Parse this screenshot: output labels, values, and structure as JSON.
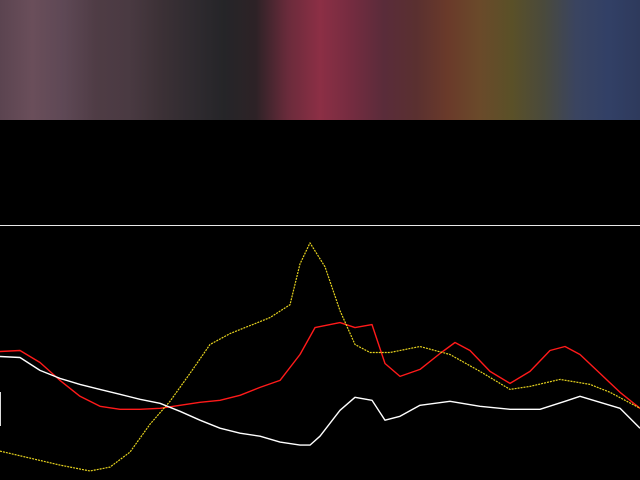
{
  "spectrum_strip": {
    "colors": [
      "#5b4450",
      "#6a4e5a",
      "#5e4855",
      "#4f3c45",
      "#4a3a42",
      "#3c3136",
      "#302b30",
      "#252528",
      "#2d2226",
      "#6a2b3b",
      "#8c2f45",
      "#742c40",
      "#5a2c3a",
      "#5a3030",
      "#6a3a2a",
      "#6a4a2a",
      "#5a5028",
      "#4a4a3c",
      "#3a4460",
      "#324066",
      "#2e3a5c"
    ]
  },
  "chart_data": {
    "type": "line",
    "x_range": [
      0,
      640
    ],
    "y_range": [
      0,
      255
    ],
    "grid": false,
    "series": [
      {
        "color": "#ff1a1a",
        "values": [
          [
            0,
            129
          ],
          [
            20,
            130
          ],
          [
            40,
            118
          ],
          [
            60,
            100
          ],
          [
            80,
            84
          ],
          [
            100,
            74
          ],
          [
            120,
            71
          ],
          [
            140,
            71
          ],
          [
            160,
            72
          ],
          [
            180,
            75
          ],
          [
            200,
            78
          ],
          [
            220,
            80
          ],
          [
            240,
            85
          ],
          [
            260,
            93
          ],
          [
            280,
            100
          ],
          [
            300,
            126
          ],
          [
            315,
            153
          ],
          [
            340,
            158
          ],
          [
            355,
            153
          ],
          [
            372,
            156
          ],
          [
            385,
            117
          ],
          [
            400,
            104
          ],
          [
            420,
            111
          ],
          [
            440,
            127
          ],
          [
            455,
            138
          ],
          [
            470,
            130
          ],
          [
            490,
            109
          ],
          [
            510,
            97
          ],
          [
            530,
            109
          ],
          [
            550,
            130
          ],
          [
            565,
            134
          ],
          [
            580,
            126
          ],
          [
            600,
            107
          ],
          [
            620,
            88
          ],
          [
            640,
            72
          ]
        ]
      },
      {
        "color": "#e6d21e",
        "values": [
          [
            0,
            29
          ],
          [
            30,
            22
          ],
          [
            60,
            15
          ],
          [
            90,
            9
          ],
          [
            110,
            13
          ],
          [
            130,
            28
          ],
          [
            150,
            56
          ],
          [
            170,
            79
          ],
          [
            190,
            107
          ],
          [
            210,
            136
          ],
          [
            230,
            147
          ],
          [
            250,
            155
          ],
          [
            270,
            163
          ],
          [
            290,
            176
          ],
          [
            300,
            217
          ],
          [
            310,
            238
          ],
          [
            325,
            214
          ],
          [
            340,
            170
          ],
          [
            355,
            136
          ],
          [
            370,
            128
          ],
          [
            390,
            128
          ],
          [
            420,
            134
          ],
          [
            450,
            126
          ],
          [
            480,
            109
          ],
          [
            510,
            91
          ],
          [
            530,
            94
          ],
          [
            560,
            101
          ],
          [
            590,
            96
          ],
          [
            610,
            88
          ],
          [
            640,
            72
          ]
        ]
      },
      {
        "color": "#ffffff",
        "values": [
          [
            0,
            124
          ],
          [
            20,
            123
          ],
          [
            40,
            110
          ],
          [
            60,
            102
          ],
          [
            80,
            96
          ],
          [
            100,
            91
          ],
          [
            120,
            86
          ],
          [
            140,
            81
          ],
          [
            160,
            77
          ],
          [
            180,
            69
          ],
          [
            200,
            60
          ],
          [
            220,
            52
          ],
          [
            240,
            47
          ],
          [
            260,
            44
          ],
          [
            280,
            38
          ],
          [
            300,
            35
          ],
          [
            310,
            35
          ],
          [
            320,
            44
          ],
          [
            340,
            70
          ],
          [
            355,
            83
          ],
          [
            372,
            80
          ],
          [
            385,
            60
          ],
          [
            400,
            64
          ],
          [
            420,
            75
          ],
          [
            450,
            79
          ],
          [
            480,
            74
          ],
          [
            510,
            71
          ],
          [
            540,
            71
          ],
          [
            565,
            79
          ],
          [
            580,
            84
          ],
          [
            600,
            78
          ],
          [
            620,
            72
          ],
          [
            640,
            52
          ]
        ]
      }
    ]
  }
}
